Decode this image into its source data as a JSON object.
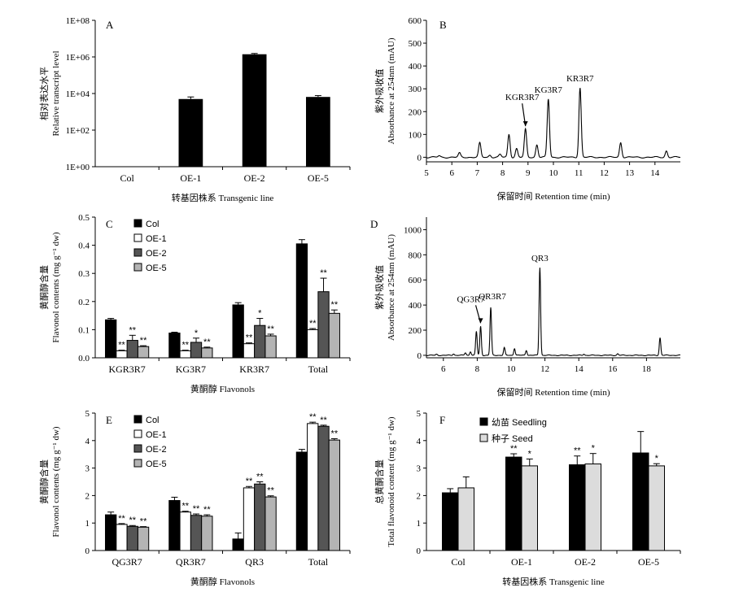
{
  "chart_data": [
    {
      "panel": "A",
      "type": "bar",
      "categories": [
        "Col",
        "OE-1",
        "OE-2",
        "OE-5"
      ],
      "values": [
        1,
        5000,
        1400000,
        6500
      ],
      "errors": [
        0,
        1500,
        150000,
        1200
      ],
      "yscale": "log",
      "ylim": [
        1,
        100000000
      ],
      "yticks": [
        "1E+00",
        "1E+02",
        "1E+04",
        "1E+06",
        "1E+08"
      ],
      "ylabel_cn": "相对表达水平",
      "ylabel": "Relative transcript level",
      "xlabel": "转基因株系 Transgenic line"
    },
    {
      "panel": "B",
      "type": "line",
      "xlim": [
        5,
        15
      ],
      "ylim": [
        -20,
        600
      ],
      "xticks": [
        5,
        6,
        7,
        8,
        9,
        10,
        11,
        12,
        13,
        14
      ],
      "yticks": [
        0,
        100,
        200,
        300,
        400,
        500,
        600
      ],
      "peaks": [
        [
          5.5,
          6
        ],
        [
          6.3,
          18
        ],
        [
          7.1,
          62
        ],
        [
          7.5,
          10
        ],
        [
          7.9,
          12
        ],
        [
          8.25,
          100
        ],
        [
          8.55,
          38
        ],
        [
          8.9,
          122
        ],
        [
          9.35,
          55
        ],
        [
          9.8,
          255
        ],
        [
          11.05,
          305
        ],
        [
          12.65,
          65
        ],
        [
          14.45,
          28
        ]
      ],
      "annotations": [
        {
          "text": "KGR3R7",
          "x": 8.9,
          "y": 122
        },
        {
          "text": "KG3R7",
          "x": 9.8,
          "y": 255
        },
        {
          "text": "KR3R7",
          "x": 11.05,
          "y": 305
        }
      ],
      "ylabel_cn": "紫外吸收值",
      "ylabel": "Absorbance at 254nm (mAU)",
      "xlabel": "保留时间 Retention time (min)"
    },
    {
      "panel": "C",
      "type": "bar",
      "categories": [
        "KGR3R7",
        "KG3R7",
        "KR3R7",
        "Total"
      ],
      "series": [
        {
          "name": "Col",
          "values": [
            0.135,
            0.088,
            0.188,
            0.405
          ],
          "errors": [
            0.005,
            0.003,
            0.008,
            0.015
          ],
          "stars": [
            "",
            "",
            "",
            ""
          ]
        },
        {
          "name": "OE-1",
          "values": [
            0.025,
            0.025,
            0.05,
            0.1
          ],
          "errors": [
            0.002,
            0.002,
            0.003,
            0.004
          ],
          "stars": [
            "**",
            "**",
            "**",
            "**"
          ]
        },
        {
          "name": "OE-2",
          "values": [
            0.062,
            0.055,
            0.115,
            0.235
          ],
          "errors": [
            0.018,
            0.015,
            0.025,
            0.048
          ],
          "stars": [
            "**",
            "*",
            "*",
            "**"
          ]
        },
        {
          "name": "OE-5",
          "values": [
            0.04,
            0.035,
            0.078,
            0.158
          ],
          "errors": [
            0.003,
            0.003,
            0.006,
            0.012
          ],
          "stars": [
            "**",
            "**",
            "**",
            "**"
          ]
        }
      ],
      "ylim": [
        0,
        0.5
      ],
      "yticks": [
        "0.0",
        "0.1",
        "0.2",
        "0.3",
        "0.4",
        "0.5"
      ],
      "ylabel_cn": "黄酮醇含量",
      "ylabel": "Flavonol contents (mg g⁻¹ dw)",
      "xlabel": "黄酮醇 Flavonols"
    },
    {
      "panel": "D",
      "type": "line",
      "xlim": [
        5,
        20
      ],
      "ylim": [
        -20,
        1100
      ],
      "xticks": [
        6,
        8,
        10,
        12,
        14,
        16,
        18
      ],
      "yticks": [
        0,
        200,
        400,
        600,
        800,
        1000
      ],
      "peaks": [
        [
          5.6,
          8
        ],
        [
          6.6,
          12
        ],
        [
          7.3,
          20
        ],
        [
          7.6,
          30
        ],
        [
          7.95,
          190
        ],
        [
          8.2,
          230
        ],
        [
          8.8,
          380
        ],
        [
          9.6,
          60
        ],
        [
          10.2,
          55
        ],
        [
          10.9,
          40
        ],
        [
          11.7,
          700
        ],
        [
          14.3,
          10
        ],
        [
          16.3,
          12
        ],
        [
          18.8,
          140
        ]
      ],
      "annotations": [
        {
          "text": "QG3R7",
          "x": 8.2,
          "y": 230
        },
        {
          "text": "QR3R7",
          "x": 8.8,
          "y": 380
        },
        {
          "text": "QR3",
          "x": 11.7,
          "y": 700
        }
      ],
      "ylabel_cn": "紫外吸收值",
      "ylabel": "Absorbance at 254nm (mAU)",
      "xlabel": "保留时间 Retention time (min)"
    },
    {
      "panel": "E",
      "type": "bar",
      "categories": [
        "QG3R7",
        "QR3R7",
        "QR3",
        "Total"
      ],
      "series": [
        {
          "name": "Col",
          "values": [
            1.3,
            1.82,
            0.42,
            3.58
          ],
          "errors": [
            0.1,
            0.12,
            0.22,
            0.1
          ],
          "stars": [
            "",
            "",
            "",
            ""
          ]
        },
        {
          "name": "OE-1",
          "values": [
            0.95,
            1.4,
            2.28,
            4.62
          ],
          "errors": [
            0.03,
            0.03,
            0.05,
            0.05
          ],
          "stars": [
            "**",
            "**",
            "**",
            "**"
          ]
        },
        {
          "name": "OE-2",
          "values": [
            0.88,
            1.28,
            2.42,
            4.52
          ],
          "errors": [
            0.03,
            0.05,
            0.08,
            0.04
          ],
          "stars": [
            "**",
            "**",
            "**",
            "**"
          ]
        },
        {
          "name": "OE-5",
          "values": [
            0.85,
            1.25,
            1.95,
            4.02
          ],
          "errors": [
            0.02,
            0.05,
            0.04,
            0.05
          ],
          "stars": [
            "**",
            "**",
            "**",
            "**"
          ]
        }
      ],
      "ylim": [
        0,
        5
      ],
      "yticks": [
        "0",
        "1",
        "2",
        "3",
        "4",
        "5"
      ],
      "ylabel_cn": "黄酮醇含量",
      "ylabel": "Flavonol contents (mg g⁻¹ dw)",
      "xlabel": "黄酮醇 Flavonols"
    },
    {
      "panel": "F",
      "type": "bar",
      "categories": [
        "Col",
        "OE-1",
        "OE-2",
        "OE-5"
      ],
      "series": [
        {
          "name": "幼苗 Seedling",
          "values": [
            2.1,
            3.4,
            3.12,
            3.55
          ],
          "errors": [
            0.15,
            0.12,
            0.32,
            0.78
          ],
          "stars": [
            "",
            "**",
            "**",
            ""
          ]
        },
        {
          "name": "种子 Seed",
          "values": [
            2.28,
            3.08,
            3.15,
            3.08
          ],
          "errors": [
            0.4,
            0.25,
            0.38,
            0.08
          ],
          "stars": [
            "",
            "*",
            "*",
            "*"
          ]
        }
      ],
      "ylim": [
        0,
        5
      ],
      "yticks": [
        "0",
        "1",
        "2",
        "3",
        "4",
        "5"
      ],
      "ylabel_cn": "总黄酮含量",
      "ylabel": "Total flavonoid content (mg g⁻¹ dw)",
      "xlabel": "转基因株系 Transgenic line"
    }
  ],
  "colors": {
    "black": "#000000",
    "white": "#ffffff",
    "darkgray": "#555555",
    "lightgray": "#b4b4b4",
    "seedgray": "#dcdcdc"
  }
}
